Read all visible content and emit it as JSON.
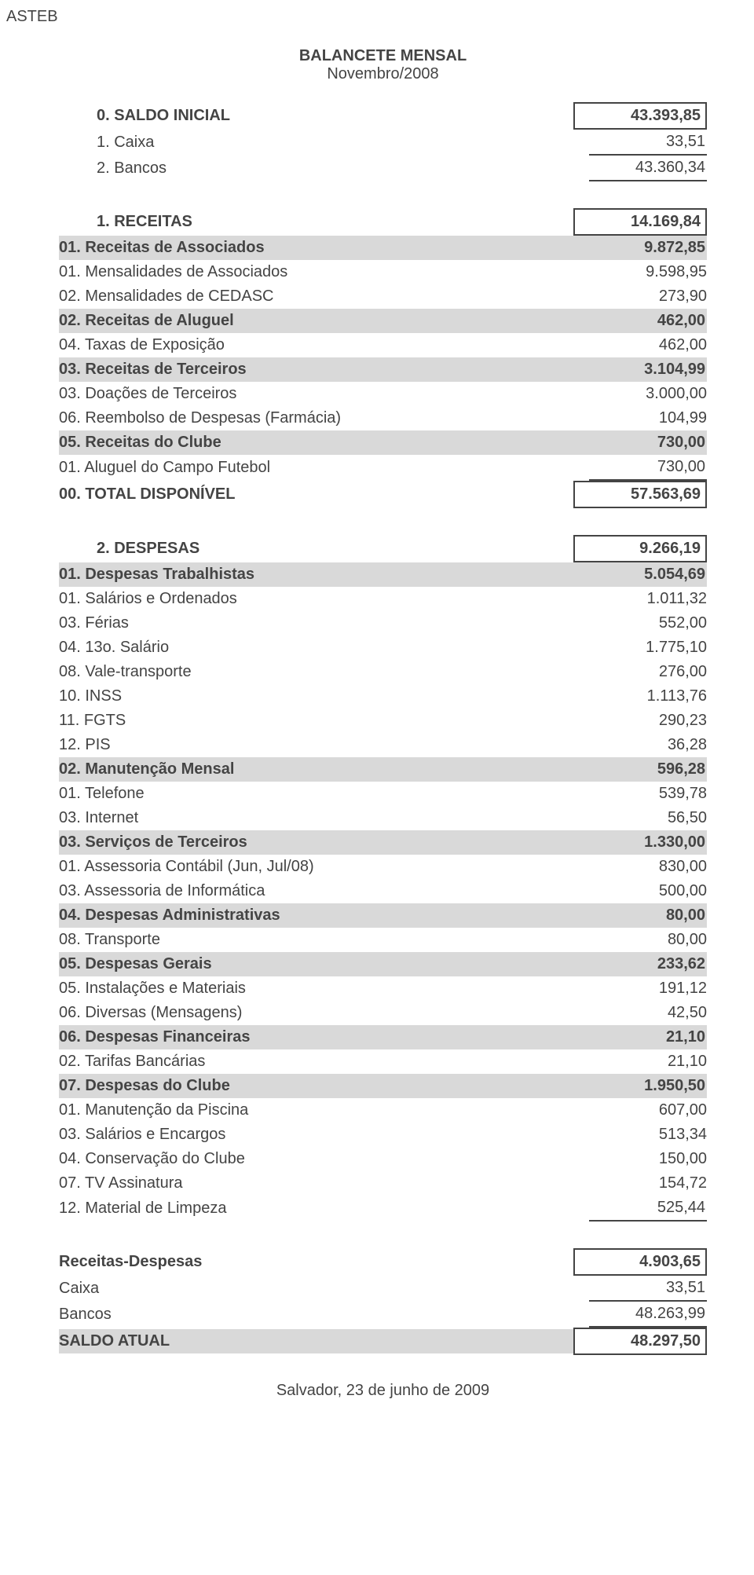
{
  "org": "ASTEB",
  "header": {
    "title": "BALANCETE MENSAL",
    "period": "Novembro/2008"
  },
  "footer": "Salvador, 23 de junho de 2009",
  "colors": {
    "text": "#444444",
    "highlight_bg": "#d9d9d9",
    "page_bg": "#ffffff"
  },
  "sections": [
    {
      "rows": [
        {
          "label": "0. SALDO INICIAL",
          "value": "43.393,85",
          "bold": true,
          "indent": true,
          "box": true
        },
        {
          "label": "1. Caixa",
          "value": "33,51",
          "indent": true,
          "underline": true
        },
        {
          "label": "2. Bancos",
          "value": "43.360,34",
          "indent": true,
          "underline": true
        }
      ]
    },
    {
      "rows": [
        {
          "label": "1. RECEITAS",
          "value": "14.169,84",
          "bold": true,
          "indent": true,
          "box": true
        },
        {
          "label": "01. Receitas de Associados",
          "value": "9.872,85",
          "bold": true,
          "hl": true
        },
        {
          "label": "01. Mensalidades de Associados",
          "value": "9.598,95"
        },
        {
          "label": "02. Mensalidades de CEDASC",
          "value": "273,90"
        },
        {
          "label": "02. Receitas de Aluguel",
          "value": "462,00",
          "bold": true,
          "hl": true
        },
        {
          "label": "04. Taxas de Exposição",
          "value": "462,00"
        },
        {
          "label": "03. Receitas de Terceiros",
          "value": "3.104,99",
          "bold": true,
          "hl": true
        },
        {
          "label": "03. Doações de Terceiros",
          "value": "3.000,00"
        },
        {
          "label": "06. Reembolso de Despesas (Farmácia)",
          "value": "104,99"
        },
        {
          "label": "05. Receitas do Clube",
          "value": "730,00",
          "bold": true,
          "hl": true
        },
        {
          "label": "01. Aluguel do Campo Futebol",
          "value": "730,00",
          "underline": true
        },
        {
          "label": "00. TOTAL DISPONÍVEL",
          "value": "57.563,69",
          "bold": true,
          "box": true
        }
      ]
    },
    {
      "rows": [
        {
          "label": "2. DESPESAS",
          "value": "9.266,19",
          "bold": true,
          "indent": true,
          "box": true
        },
        {
          "label": "01. Despesas Trabalhistas",
          "value": "5.054,69",
          "bold": true,
          "hl": true
        },
        {
          "label": "01. Salários e Ordenados",
          "value": "1.011,32"
        },
        {
          "label": "03. Férias",
          "value": "552,00"
        },
        {
          "label": "04. 13o. Salário",
          "value": "1.775,10"
        },
        {
          "label": "08. Vale-transporte",
          "value": "276,00"
        },
        {
          "label": "10. INSS",
          "value": "1.113,76"
        },
        {
          "label": "11. FGTS",
          "value": "290,23"
        },
        {
          "label": "12. PIS",
          "value": "36,28"
        },
        {
          "label": "02. Manutenção Mensal",
          "value": "596,28",
          "bold": true,
          "hl": true
        },
        {
          "label": "01. Telefone",
          "value": "539,78"
        },
        {
          "label": "03. Internet",
          "value": "56,50"
        },
        {
          "label": "03. Serviços de Terceiros",
          "value": "1.330,00",
          "bold": true,
          "hl": true
        },
        {
          "label": "01. Assessoria Contábil (Jun, Jul/08)",
          "value": "830,00"
        },
        {
          "label": "03. Assessoria de Informática",
          "value": "500,00"
        },
        {
          "label": "04. Despesas Administrativas",
          "value": "80,00",
          "bold": true,
          "hl": true
        },
        {
          "label": "08. Transporte",
          "value": "80,00"
        },
        {
          "label": "05. Despesas Gerais",
          "value": "233,62",
          "bold": true,
          "hl": true
        },
        {
          "label": "05. Instalações e Materiais",
          "value": "191,12"
        },
        {
          "label": "06. Diversas (Mensagens)",
          "value": "42,50"
        },
        {
          "label": "06. Despesas Financeiras",
          "value": "21,10",
          "bold": true,
          "hl": true
        },
        {
          "label": "02. Tarifas Bancárias",
          "value": "21,10"
        },
        {
          "label": "07. Despesas do Clube",
          "value": "1.950,50",
          "bold": true,
          "hl": true
        },
        {
          "label": "01. Manutenção da Piscina",
          "value": "607,00"
        },
        {
          "label": "03. Salários e Encargos",
          "value": "513,34"
        },
        {
          "label": "04. Conservação do Clube",
          "value": "150,00"
        },
        {
          "label": "07. TV Assinatura",
          "value": "154,72"
        },
        {
          "label": "12. Material de Limpeza",
          "value": "525,44",
          "underline": true
        }
      ]
    },
    {
      "rows": [
        {
          "label": "Receitas-Despesas",
          "value": "4.903,65",
          "bold": true,
          "box": true
        },
        {
          "label": "Caixa",
          "value": "33,51",
          "underline": true
        },
        {
          "label": "Bancos",
          "value": "48.263,99",
          "underline": true
        },
        {
          "label": "SALDO ATUAL",
          "value": "48.297,50",
          "bold": true,
          "box": true,
          "hl_label_only": true
        }
      ]
    }
  ]
}
